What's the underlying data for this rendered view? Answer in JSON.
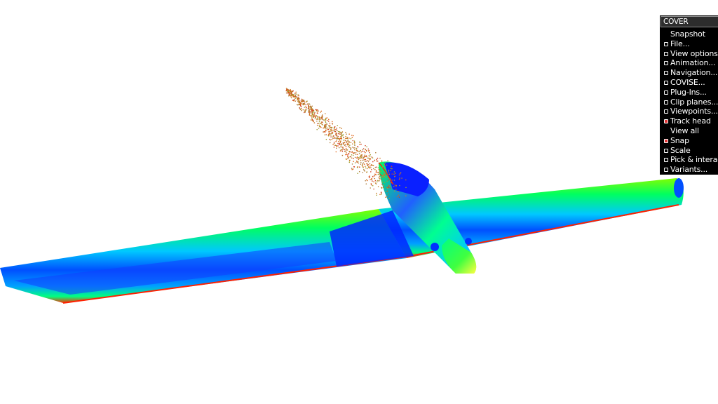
{
  "menu": {
    "title": "COVER",
    "items": [
      {
        "label": "Snapshot",
        "checkbox": false,
        "checked": false
      },
      {
        "label": "File...",
        "checkbox": true,
        "checked": false
      },
      {
        "label": "View options...",
        "checkbox": true,
        "checked": false
      },
      {
        "label": "Animation...",
        "checkbox": true,
        "checked": false
      },
      {
        "label": "Navigation...",
        "checkbox": true,
        "checked": false
      },
      {
        "label": "COVISE...",
        "checkbox": true,
        "checked": false
      },
      {
        "label": "Plug-Ins...",
        "checkbox": true,
        "checked": false
      },
      {
        "label": "Clip planes...",
        "checkbox": true,
        "checked": false
      },
      {
        "label": "Viewpoints...",
        "checkbox": true,
        "checked": false
      },
      {
        "label": "Track head",
        "checkbox": true,
        "checked": true
      },
      {
        "label": "View all",
        "checkbox": false,
        "checked": false
      },
      {
        "label": "Snap",
        "checkbox": true,
        "checked": true
      },
      {
        "label": "Scale",
        "checkbox": true,
        "checked": false
      },
      {
        "label": "Pick & interaction",
        "checkbox": true,
        "checked": false
      },
      {
        "label": "Variants...",
        "checkbox": true,
        "checked": false
      }
    ]
  },
  "scene": {
    "object": "aircraft-model",
    "colormap": [
      "#0000ff",
      "#0080ff",
      "#00ffff",
      "#00ff80",
      "#80ff00",
      "#ffff00",
      "#ff8000",
      "#ff0000"
    ]
  }
}
